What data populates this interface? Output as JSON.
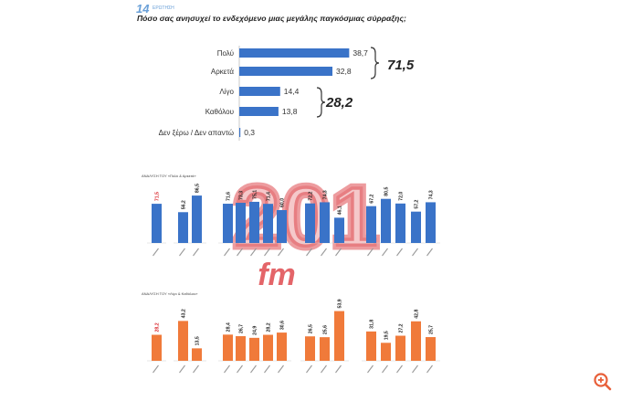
{
  "header": {
    "question_number": "14",
    "question_number_sub": "ΕΡΩΤΗΣΗ",
    "question": "Πόσο σας ανησυχεί το ενδεχόμενο μιας μεγάλης παγκόσμιας σύρραξης;"
  },
  "colors": {
    "blue": "#3a73c8",
    "orange": "#f07a3a",
    "watermark": "#d8242a"
  },
  "watermark_text": "201 fm",
  "chart_data": [
    {
      "type": "bar",
      "orientation": "horizontal",
      "categories": [
        "Πολύ",
        "Αρκετά",
        "Λίγο",
        "Καθόλου",
        "Δεν ξέρω / Δεν απαντώ"
      ],
      "values": [
        38.7,
        32.8,
        14.4,
        13.8,
        0.3
      ],
      "value_labels": [
        "38,7",
        "32,8",
        "14,4",
        "13,8",
        "0,3"
      ],
      "group_totals": [
        {
          "label": "71,5",
          "categories": [
            "Πολύ",
            "Αρκετά"
          ]
        },
        {
          "label": "28,2",
          "categories": [
            "Λίγο",
            "Καθόλου"
          ]
        }
      ]
    },
    {
      "type": "bar",
      "title": "ΑΝΑΛΥΣΗ ΤΟΥ «Πολύ & Αρκετά»",
      "value_labels": [
        "71,5",
        "56,2",
        "86,5",
        "71,6",
        "73,3",
        "75,1",
        "71,4",
        "60,0",
        "72,2",
        "74,3",
        "46,1",
        "67,2",
        "80,5",
        "72,0",
        "57,2",
        "74,3"
      ],
      "values": [
        71.5,
        56.2,
        86.5,
        71.6,
        73.3,
        75.1,
        71.4,
        60.0,
        72.2,
        74.3,
        46.1,
        67.2,
        80.5,
        72.0,
        57.2,
        74.3
      ]
    },
    {
      "type": "bar",
      "title": "ΑΝΑΛΥΣΗ ΤΟΥ «Λίγο & Καθόλου»",
      "value_labels": [
        "28,2",
        "43,2",
        "13,5",
        "28,4",
        "26,7",
        "24,9",
        "28,2",
        "30,6",
        "26,5",
        "25,6",
        "53,9",
        "31,8",
        "19,5",
        "27,2",
        "42,8",
        "25,7"
      ],
      "values": [
        28.2,
        43.2,
        13.5,
        28.4,
        26.7,
        24.9,
        28.2,
        30.6,
        26.5,
        25.6,
        53.9,
        31.8,
        19.5,
        27.2,
        42.8,
        25.7
      ]
    }
  ]
}
